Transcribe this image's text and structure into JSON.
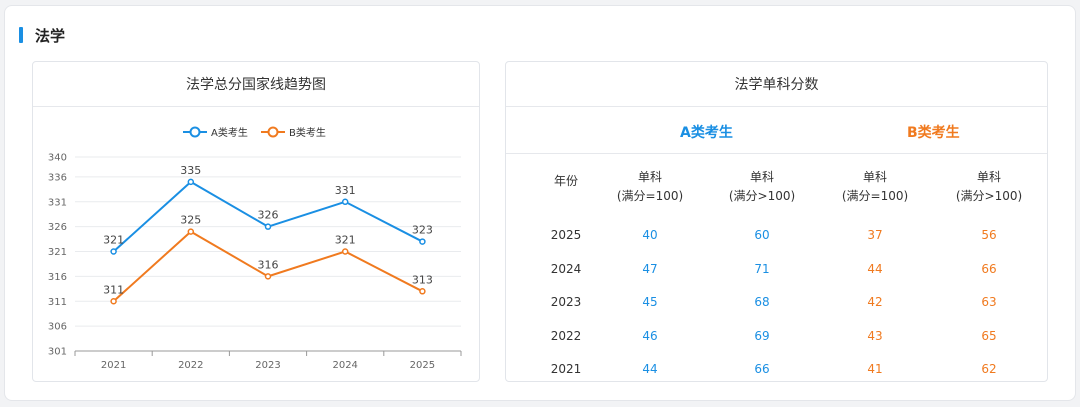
{
  "section": {
    "title": "法学"
  },
  "trend": {
    "title": "法学总分国家线趋势图",
    "legend": [
      "A类考生",
      "B类考生"
    ]
  },
  "scores": {
    "title": "法学单科分数",
    "group_a": "A类考生",
    "group_b": "B类考生",
    "columns": {
      "year": "年份",
      "a_low": [
        "单科",
        "(满分=100)"
      ],
      "a_high": [
        "单科",
        "(满分>100)"
      ],
      "b_low": [
        "单科",
        "(满分=100)"
      ],
      "b_high": [
        "单科",
        "(满分>100)"
      ]
    },
    "rows": [
      {
        "year": "2025",
        "a_low": "40",
        "a_high": "60",
        "b_low": "37",
        "b_high": "56"
      },
      {
        "year": "2024",
        "a_low": "47",
        "a_high": "71",
        "b_low": "44",
        "b_high": "66"
      },
      {
        "year": "2023",
        "a_low": "45",
        "a_high": "68",
        "b_low": "42",
        "b_high": "63"
      },
      {
        "year": "2022",
        "a_low": "46",
        "a_high": "69",
        "b_low": "43",
        "b_high": "65"
      },
      {
        "year": "2021",
        "a_low": "44",
        "a_high": "66",
        "b_low": "41",
        "b_high": "62"
      }
    ]
  },
  "colors": {
    "a": "#1a8fe3",
    "b": "#f07a1f",
    "accent": "#1a8fe3"
  },
  "chart_data": [
    {
      "type": "line",
      "title": "法学总分国家线趋势图",
      "x": [
        "2021",
        "2022",
        "2023",
        "2024",
        "2025"
      ],
      "series": [
        {
          "name": "A类考生",
          "values": [
            321,
            335,
            326,
            331,
            323
          ]
        },
        {
          "name": "B类考生",
          "values": [
            311,
            325,
            316,
            321,
            313
          ]
        }
      ],
      "yticks": [
        301,
        306,
        311,
        316,
        321,
        326,
        331,
        336,
        340
      ],
      "ylim": [
        301,
        340
      ],
      "grid": true,
      "legend": "top-center"
    },
    {
      "type": "table",
      "title": "法学单科分数",
      "columns": [
        "年份",
        "A类考生 单科(满分=100)",
        "A类考生 单科(满分>100)",
        "B类考生 单科(满分=100)",
        "B类考生 单科(满分>100)"
      ],
      "rows": [
        [
          "2025",
          40,
          60,
          37,
          56
        ],
        [
          "2024",
          47,
          71,
          44,
          66
        ],
        [
          "2023",
          45,
          68,
          42,
          63
        ],
        [
          "2022",
          46,
          69,
          43,
          65
        ],
        [
          "2021",
          44,
          66,
          41,
          62
        ]
      ]
    }
  ]
}
